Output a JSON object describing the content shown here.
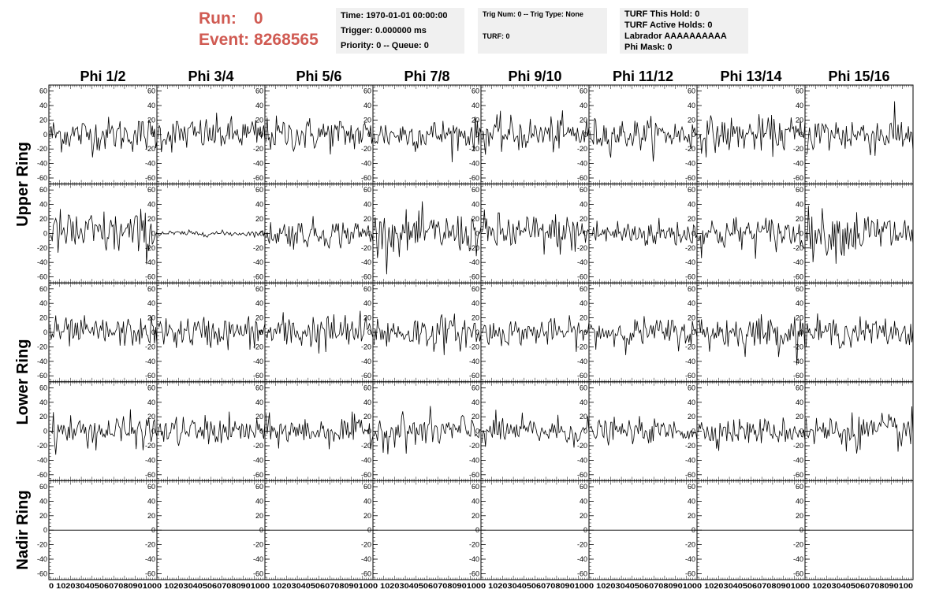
{
  "header": {
    "run_label": "Run:",
    "run_value": "0",
    "event_label": "Event:",
    "event_value": "8268565"
  },
  "info_time": {
    "time": "Time: 1970-01-01 00:00:00",
    "trigger": "Trigger: 0.000000 ms",
    "priority": "Priority: 0 -- Queue: 0"
  },
  "info_trig": {
    "trig": "Trig Num: 0 -- Trig Type: None",
    "turf": "TURF: 0"
  },
  "info_turf": {
    "this_hold": "TURF This Hold: 0",
    "active_holds": "TURF Active Holds: 0",
    "labrador": "Labrador AAAAAAAAAA",
    "phi_mask": "Phi Mask: 0"
  },
  "columns": [
    "Phi 1/2",
    "Phi 3/4",
    "Phi 5/6",
    "Phi 7/8",
    "Phi 9/10",
    "Phi 11/12",
    "Phi 13/14",
    "Phi 15/16"
  ],
  "rings": [
    "Upper Ring",
    "Lower Ring",
    "Nadir Ring"
  ],
  "chart_data": {
    "type": "line",
    "grid": false,
    "xlim": [
      0,
      100
    ],
    "ylim": [
      -65,
      65
    ],
    "x_ticks": [
      0,
      10,
      20,
      30,
      40,
      50,
      60,
      70,
      80,
      90,
      100
    ],
    "y_ticks": [
      -60,
      -40,
      -20,
      0,
      20,
      40,
      60
    ],
    "x_tick_labels": "0 102030405060708090100",
    "panels_rows": 5,
    "panels_cols": 8,
    "row_amplitude_rms": [
      [
        12,
        12,
        12,
        11,
        12,
        11,
        12,
        14
      ],
      [
        16,
        2,
        10,
        14,
        14,
        10,
        12,
        16
      ],
      [
        10,
        11,
        13,
        12,
        9,
        10,
        12,
        10
      ],
      [
        11,
        10,
        10,
        12,
        10,
        8,
        9,
        12
      ],
      [
        0,
        0,
        0,
        0,
        0,
        0,
        0,
        0
      ]
    ],
    "samples_per_trace": 94,
    "color_trace": "#000000"
  }
}
